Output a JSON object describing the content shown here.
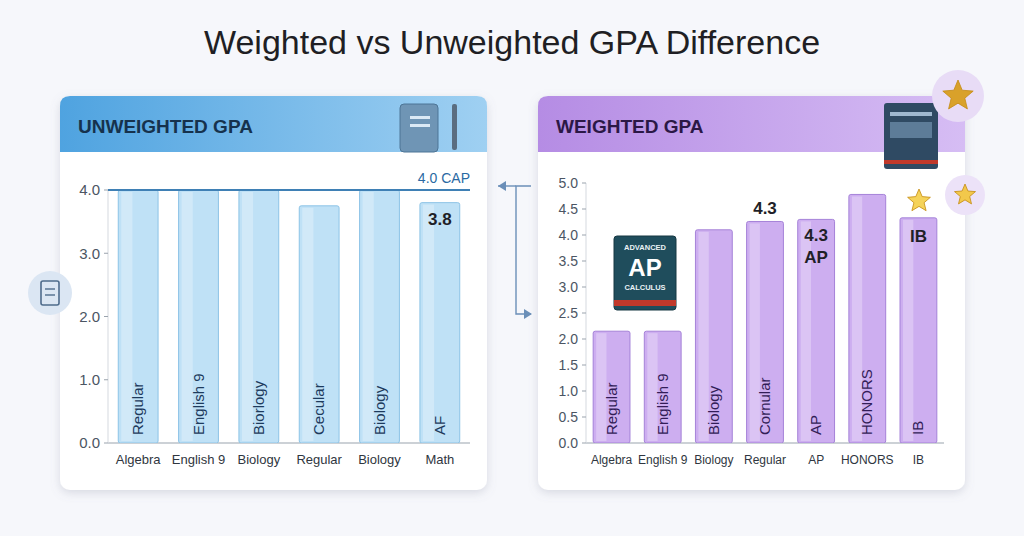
{
  "title": "Weighted vs Unweighted GPA Difference",
  "book": {
    "top": "ADVANCED",
    "big": "AP",
    "bottom": "CALCULUS"
  },
  "chart_data": [
    {
      "type": "bar",
      "title": "UNWEIGHTED GPA",
      "categories": [
        "Algebra",
        "English 9",
        "Biology",
        "Regular",
        "Biology",
        "Math"
      ],
      "values": [
        4.0,
        4.0,
        4.0,
        3.75,
        4.0,
        3.8
      ],
      "bar_labels": [
        "Regular",
        "English 9",
        "Biorlogy",
        "Cecular",
        "Biology",
        "AF"
      ],
      "value_labels": [
        null,
        null,
        null,
        null,
        null,
        "3.8"
      ],
      "data_labels": true,
      "color": "#bfe1f6",
      "ylim": [
        0,
        4
      ],
      "yticks": [
        {
          "value": 0,
          "label": "0.0"
        },
        {
          "value": 1,
          "label": "1.0"
        },
        {
          "value": 2,
          "label": "2.0"
        },
        {
          "value": 3,
          "label": "3.0"
        },
        {
          "value": 4,
          "label": "4.0"
        }
      ],
      "grid": false,
      "cap": {
        "value": 4,
        "label": "4.0 CAP"
      }
    },
    {
      "type": "bar",
      "title": "WEIGHTED GPA",
      "categories": [
        "Algebra",
        "English 9",
        "Biology",
        "Regular",
        "AP",
        "HONORS",
        "IB"
      ],
      "values": [
        2.15,
        2.15,
        4.1,
        4.26,
        4.3,
        4.78,
        4.33
      ],
      "bar_labels": [
        "Regular",
        "English 9",
        "Biology",
        "Cornular",
        "AP",
        "HONORS",
        "IB"
      ],
      "top_labels": [
        null,
        null,
        null,
        null,
        "AP",
        null,
        "IB"
      ],
      "value_labels": [
        null,
        null,
        null,
        "4.3",
        "4.3",
        null,
        null
      ],
      "data_labels": true,
      "color": "#cdaef0",
      "ylim": [
        0,
        5
      ],
      "yticks": [
        {
          "value": 0,
          "label": "0.0"
        },
        {
          "value": 0.5,
          "label": "0.5"
        },
        {
          "value": 1,
          "label": "1.0"
        },
        {
          "value": 1.5,
          "label": "1.5"
        },
        {
          "value": 2,
          "label": "2.0"
        },
        {
          "value": 2.5,
          "label": "2.5"
        },
        {
          "value": 3,
          "label": "3.0"
        },
        {
          "value": 3.5,
          "label": "3.5"
        },
        {
          "value": 4,
          "label": "4.0"
        },
        {
          "value": 4.5,
          "label": "4.5"
        },
        {
          "value": 5,
          "label": "5.0"
        }
      ],
      "grid": false
    }
  ]
}
